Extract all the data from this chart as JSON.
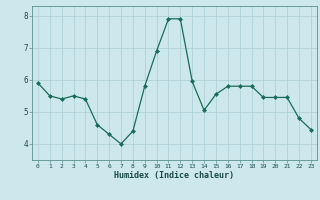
{
  "x": [
    0,
    1,
    2,
    3,
    4,
    5,
    6,
    7,
    8,
    9,
    10,
    11,
    12,
    13,
    14,
    15,
    16,
    17,
    18,
    19,
    20,
    21,
    22,
    23
  ],
  "y": [
    5.9,
    5.5,
    5.4,
    5.5,
    5.4,
    4.6,
    4.3,
    4.0,
    4.4,
    5.8,
    6.9,
    7.9,
    7.9,
    5.95,
    5.05,
    5.55,
    5.8,
    5.8,
    5.8,
    5.45,
    5.45,
    5.45,
    4.8,
    4.45
  ],
  "xlabel": "Humidex (Indice chaleur)",
  "ylim": [
    3.5,
    8.3
  ],
  "xlim": [
    -0.5,
    23.5
  ],
  "yticks": [
    4,
    5,
    6,
    7,
    8
  ],
  "xticks": [
    0,
    1,
    2,
    3,
    4,
    5,
    6,
    7,
    8,
    9,
    10,
    11,
    12,
    13,
    14,
    15,
    16,
    17,
    18,
    19,
    20,
    21,
    22,
    23
  ],
  "line_color": "#1a6b5a",
  "marker_color": "#1a6b5a",
  "bg_color": "#cde8ed",
  "grid_color": "#aaccd4",
  "xlabel_color": "#1a4a4a",
  "tick_color": "#1a4a4a",
  "spine_color": "#5a9090"
}
